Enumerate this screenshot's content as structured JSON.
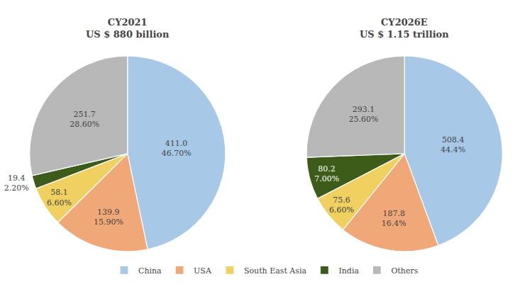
{
  "chart_data": [
    {
      "type": "pie",
      "title": "CY2021",
      "subtitle": "US $ 880 billion",
      "categories": [
        "China",
        "USA",
        "South East Asia",
        "India",
        "Others"
      ],
      "values": [
        411.0,
        139.9,
        58.1,
        19.4,
        251.7
      ],
      "value_labels": [
        "411.0",
        "139.9",
        "58.1",
        "19.4",
        "251.7"
      ],
      "percentages": [
        46.7,
        15.9,
        6.6,
        2.2,
        28.6
      ],
      "percentage_labels": [
        "46.70%",
        "15.90%",
        "6.60%",
        "2.20%",
        "28.60%"
      ],
      "colors": [
        "#a8c8e8",
        "#f0a878",
        "#f0d060",
        "#3d5c1a",
        "#b8b8b8"
      ],
      "data_labels": true,
      "legend": "bottom"
    },
    {
      "type": "pie",
      "title": "CY2026E",
      "subtitle": "US $ 1.15 trillion",
      "categories": [
        "China",
        "USA",
        "South East Asia",
        "India",
        "Others"
      ],
      "values": [
        508.4,
        187.8,
        75.6,
        80.2,
        293.1
      ],
      "value_labels": [
        "508.4",
        "187.8",
        "75.6",
        "80.2",
        "293.1"
      ],
      "percentages": [
        44.4,
        16.4,
        6.6,
        7.0,
        25.6
      ],
      "percentage_labels": [
        "44.4%",
        "16.4%",
        "6.60%",
        "7.00%",
        "25.60%"
      ],
      "colors": [
        "#a8c8e8",
        "#f0a878",
        "#f0d060",
        "#3d5c1a",
        "#b8b8b8"
      ],
      "data_labels": true,
      "legend": "bottom"
    }
  ]
}
